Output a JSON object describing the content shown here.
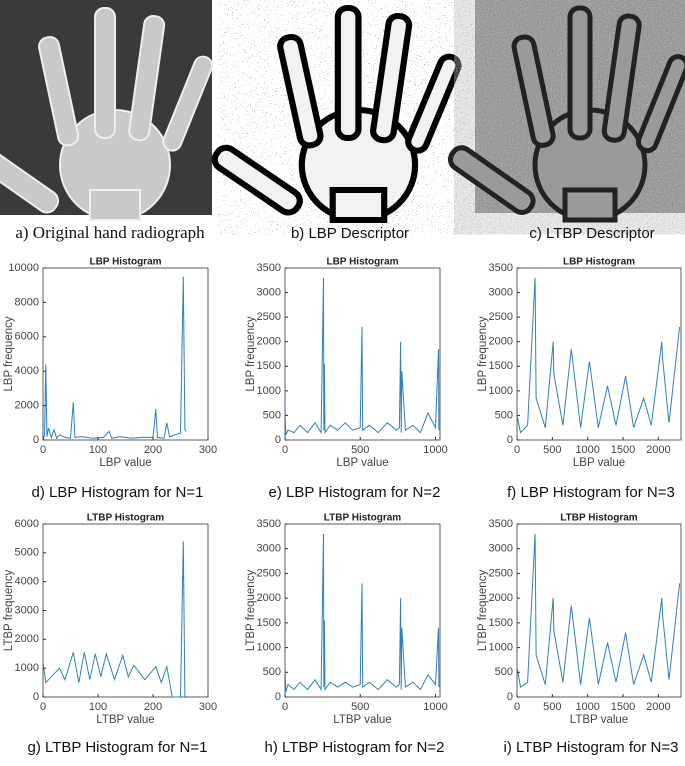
{
  "images": [
    {
      "caption": "a) Original hand radiograph"
    },
    {
      "caption": "b) LBP Descriptor"
    },
    {
      "caption": "c) LTBP Descriptor"
    }
  ],
  "chart_data": [
    {
      "type": "line",
      "title": "LBP Histogram",
      "caption": "d) LBP Histogram for N=1",
      "xlabel": "LBP value",
      "ylabel": "LBP frequency",
      "color": "#2f7fc1",
      "x": [
        0,
        3,
        5,
        7,
        10,
        15,
        20,
        25,
        30,
        40,
        50,
        55,
        58,
        70,
        90,
        110,
        120,
        125,
        140,
        160,
        180,
        200,
        205,
        208,
        220,
        225,
        230,
        250,
        255,
        258,
        260
      ],
      "values": [
        0,
        300,
        4400,
        200,
        700,
        150,
        600,
        100,
        300,
        150,
        100,
        2200,
        150,
        200,
        100,
        150,
        500,
        100,
        200,
        100,
        150,
        150,
        1800,
        150,
        100,
        1000,
        200,
        400,
        9500,
        600,
        500
      ],
      "xlim": [
        0,
        300
      ],
      "xticks": [
        0,
        100,
        200,
        300
      ],
      "ylim": [
        0,
        10000
      ],
      "yticks": [
        0,
        2000,
        4000,
        6000,
        8000,
        10000
      ]
    },
    {
      "type": "line",
      "title": "LBP Histogram",
      "caption": "e) LBP Histogram for N=2",
      "xlabel": "LBP value",
      "ylabel": "LBP frequency",
      "color": "#2f7fc1",
      "x": [
        0,
        5,
        20,
        60,
        100,
        150,
        200,
        240,
        256,
        258,
        262,
        266,
        300,
        350,
        400,
        450,
        500,
        512,
        516,
        560,
        620,
        680,
        740,
        760,
        768,
        772,
        776,
        800,
        850,
        900,
        950,
        1000,
        1020,
        1023
      ],
      "values": [
        650,
        100,
        200,
        150,
        300,
        150,
        350,
        150,
        3300,
        200,
        1550,
        150,
        300,
        200,
        350,
        200,
        250,
        2300,
        200,
        300,
        150,
        350,
        200,
        250,
        2000,
        150,
        1400,
        200,
        300,
        150,
        550,
        250,
        1850,
        200
      ],
      "xlim": [
        0,
        1030
      ],
      "xticks": [
        0,
        500,
        1000
      ],
      "ylim": [
        0,
        3500
      ],
      "yticks": [
        0,
        500,
        1000,
        1500,
        2000,
        2500,
        3000,
        3500
      ]
    },
    {
      "type": "line",
      "title": "LBP Histogram",
      "caption": "f) LBP Histogram for N=3",
      "xlabel": "LBP value",
      "ylabel": "LBP frequency",
      "color": "#2f7fc1",
      "x": [
        0,
        50,
        150,
        256,
        270,
        400,
        512,
        520,
        650,
        768,
        900,
        1024,
        1150,
        1280,
        1400,
        1536,
        1650,
        1792,
        1900,
        2048,
        2060,
        2150,
        2300
      ],
      "values": [
        500,
        150,
        300,
        3300,
        850,
        250,
        2000,
        1350,
        300,
        1850,
        250,
        1600,
        250,
        1100,
        300,
        1300,
        250,
        850,
        300,
        2000,
        1650,
        350,
        2300
      ],
      "xlim": [
        0,
        2320
      ],
      "xticks": [
        0,
        500,
        1000,
        1500,
        2000
      ],
      "ylim": [
        0,
        3500
      ],
      "yticks": [
        0,
        500,
        1000,
        1500,
        2000,
        2500,
        3000,
        3500
      ]
    },
    {
      "type": "line",
      "title": "LTBP Histogram",
      "caption": "g) LTBP Histogram for N=1",
      "xlabel": "LTBP value",
      "ylabel": "LTBP frequency",
      "color": "#2f7fc1",
      "x": [
        0,
        5,
        15,
        30,
        40,
        55,
        65,
        75,
        85,
        95,
        105,
        115,
        130,
        145,
        155,
        165,
        185,
        205,
        215,
        225,
        235,
        250,
        255,
        258
      ],
      "values": [
        1200,
        500,
        700,
        1000,
        600,
        1550,
        500,
        1550,
        600,
        1500,
        700,
        1500,
        600,
        1450,
        700,
        1100,
        600,
        1050,
        500,
        1050,
        0,
        0,
        5400,
        0
      ],
      "xlim": [
        0,
        300
      ],
      "xticks": [
        0,
        100,
        200,
        300
      ],
      "ylim": [
        0,
        6000
      ],
      "yticks": [
        0,
        1000,
        2000,
        3000,
        4000,
        5000,
        6000
      ]
    },
    {
      "type": "line",
      "title": "LTBP Histogram",
      "caption": "h) LTBP Histogram for N=2",
      "xlabel": "LTBP value",
      "ylabel": "LTBP frequency",
      "color": "#2f7fc1",
      "x": [
        0,
        5,
        20,
        60,
        100,
        150,
        200,
        240,
        256,
        258,
        262,
        266,
        300,
        350,
        400,
        450,
        500,
        512,
        516,
        560,
        620,
        680,
        740,
        760,
        768,
        772,
        776,
        800,
        850,
        900,
        950,
        1000,
        1020,
        1023
      ],
      "values": [
        650,
        100,
        250,
        150,
        300,
        150,
        350,
        150,
        3300,
        200,
        1550,
        150,
        300,
        200,
        300,
        200,
        250,
        2300,
        200,
        300,
        150,
        350,
        200,
        250,
        2000,
        150,
        1400,
        200,
        300,
        150,
        450,
        250,
        1400,
        200
      ],
      "xlim": [
        0,
        1030
      ],
      "xticks": [
        0,
        500,
        1000
      ],
      "ylim": [
        0,
        3500
      ],
      "yticks": [
        0,
        500,
        1000,
        1500,
        2000,
        2500,
        3000,
        3500
      ]
    },
    {
      "type": "line",
      "title": "LTBP Histogram",
      "caption": "i) LTBP Histogram for N=3",
      "xlabel": "LTBP value",
      "ylabel": "LTBP frequency",
      "color": "#2f7fc1",
      "x": [
        0,
        50,
        150,
        256,
        270,
        400,
        512,
        520,
        650,
        768,
        900,
        1024,
        1150,
        1280,
        1400,
        1536,
        1650,
        1792,
        1900,
        2048,
        2060,
        2150,
        2300
      ],
      "values": [
        600,
        200,
        300,
        3300,
        850,
        250,
        2000,
        1350,
        300,
        1850,
        250,
        1600,
        250,
        1100,
        300,
        1300,
        250,
        850,
        300,
        2000,
        1650,
        350,
        2300
      ],
      "xlim": [
        0,
        2320
      ],
      "xticks": [
        0,
        500,
        1000,
        1500,
        2000
      ],
      "ylim": [
        0,
        3500
      ],
      "yticks": [
        0,
        500,
        1000,
        1500,
        2000,
        2500,
        3000,
        3500
      ]
    }
  ]
}
